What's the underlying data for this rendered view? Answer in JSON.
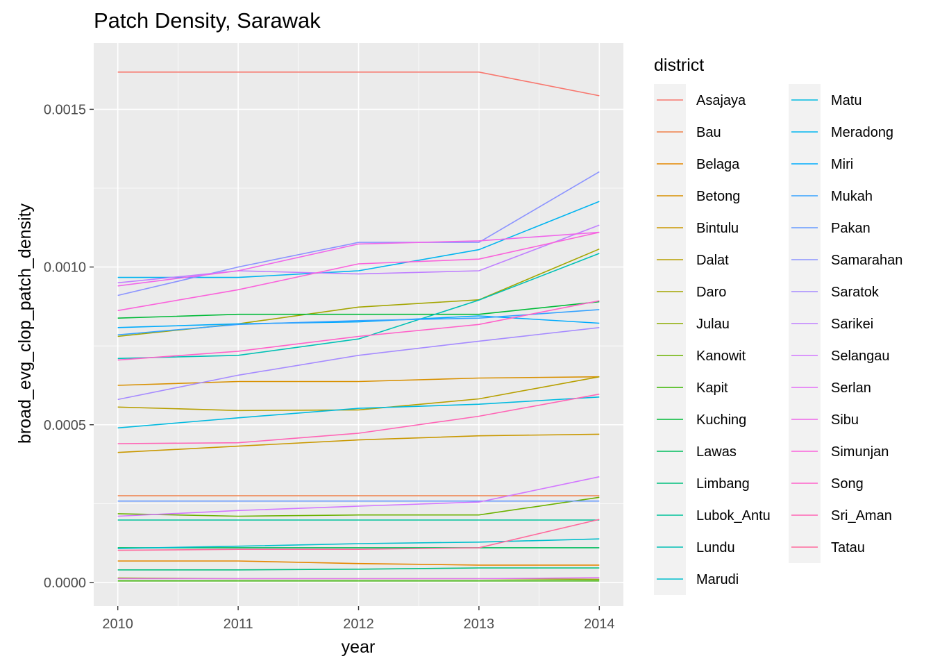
{
  "chart_data": {
    "type": "line",
    "title": "Patch Density, Sarawak",
    "xlabel": "year",
    "ylabel": "broad_evg_clop_patch_density",
    "x": [
      2010,
      2011,
      2012,
      2013,
      2014
    ],
    "x_ticks": [
      "2010",
      "2011",
      "2012",
      "2013",
      "2014"
    ],
    "y_ticks": [
      {
        "value": 0.0,
        "label": "0.0000"
      },
      {
        "value": 0.0005,
        "label": "0.0005"
      },
      {
        "value": 0.001,
        "label": "0.0010"
      },
      {
        "value": 0.0015,
        "label": "0.0015"
      }
    ],
    "xlim": [
      2009.8,
      2014.2
    ],
    "ylim": [
      -7.5e-05,
      0.00171
    ],
    "grid": true,
    "panel_background": "#ebebeb",
    "legend": {
      "title": "district",
      "placement": "right",
      "columns": 2
    },
    "series": [
      {
        "name": "Asajaya",
        "color": "#F8766D",
        "values": [
          0.001618,
          0.001618,
          0.001618,
          0.001618,
          0.001543
        ]
      },
      {
        "name": "Bau",
        "color": "#EF7F49",
        "values": [
          0.000275,
          0.000275,
          0.000275,
          0.000275,
          0.000275
        ]
      },
      {
        "name": "Belaga",
        "color": "#E58700",
        "values": [
          6.8e-05,
          6.8e-05,
          6e-05,
          5.5e-05,
          5.5e-05
        ]
      },
      {
        "name": "Betong",
        "color": "#D89000",
        "values": [
          0.000625,
          0.000637,
          0.000637,
          0.000648,
          0.000652
        ]
      },
      {
        "name": "Bintulu",
        "color": "#C99800",
        "values": [
          0.000412,
          0.000432,
          0.000452,
          0.000465,
          0.00047
        ]
      },
      {
        "name": "Dalat",
        "color": "#B79F00",
        "values": [
          0.000556,
          0.000545,
          0.000547,
          0.000582,
          0.000652
        ]
      },
      {
        "name": "Daro",
        "color": "#A3A500",
        "values": [
          0.00078,
          0.00082,
          0.000873,
          0.000896,
          0.001057
        ]
      },
      {
        "name": "Julau",
        "color": "#8BAB00",
        "values": [
          1.4e-05,
          1.2e-05,
          1.2e-05,
          1.2e-05,
          1e-05
        ]
      },
      {
        "name": "Kanowit",
        "color": "#6BB100",
        "values": [
          0.000218,
          0.00021,
          0.000214,
          0.000214,
          0.00027
        ]
      },
      {
        "name": "Kapit",
        "color": "#39B600",
        "values": [
          5e-06,
          5e-06,
          5e-06,
          5e-06,
          5e-06
        ]
      },
      {
        "name": "Kuching",
        "color": "#00BA38",
        "values": [
          0.000838,
          0.00085,
          0.00085,
          0.00085,
          0.00089
        ]
      },
      {
        "name": "Lawas",
        "color": "#00BD5C",
        "values": [
          0.00011,
          0.00011,
          0.00011,
          0.00011,
          0.00011
        ]
      },
      {
        "name": "Limbang",
        "color": "#00BF7D",
        "values": [
          4e-05,
          4e-05,
          4.2e-05,
          4.6e-05,
          4.6e-05
        ]
      },
      {
        "name": "Lubok_Antu",
        "color": "#00C19A",
        "values": [
          0.000198,
          0.000198,
          0.000198,
          0.000198,
          0.000198
        ]
      },
      {
        "name": "Lundu",
        "color": "#00C0B5",
        "values": [
          0.00071,
          0.00072,
          0.000772,
          0.000895,
          0.001043
        ]
      },
      {
        "name": "Marudi",
        "color": "#00BECC",
        "values": [
          0.000108,
          0.000115,
          0.000123,
          0.000128,
          0.000138
        ]
      },
      {
        "name": "Matu",
        "color": "#00BAE0",
        "values": [
          0.00049,
          0.000522,
          0.000552,
          0.000565,
          0.000588
        ]
      },
      {
        "name": "Meradong",
        "color": "#00B4F0",
        "values": [
          0.000967,
          0.000967,
          0.000988,
          0.001055,
          0.001208
        ]
      },
      {
        "name": "Miri",
        "color": "#00ABFD",
        "values": [
          0.000808,
          0.00082,
          0.000826,
          0.000845,
          0.000822
        ]
      },
      {
        "name": "Mukah",
        "color": "#35A2FF",
        "values": [
          0.000785,
          0.000818,
          0.00083,
          0.000838,
          0.000865
        ]
      },
      {
        "name": "Pakan",
        "color": "#6699FF",
        "values": [
          0.000258,
          0.000258,
          0.000258,
          0.000258,
          0.000258
        ]
      },
      {
        "name": "Samarahan",
        "color": "#8B93FF",
        "values": [
          0.00091,
          0.001,
          0.001078,
          0.001078,
          0.001302
        ]
      },
      {
        "name": "Saratok",
        "color": "#A58AFF",
        "values": [
          0.00058,
          0.000657,
          0.00072,
          0.000765,
          0.000808
        ]
      },
      {
        "name": "Sarikei",
        "color": "#BF80FF",
        "values": [
          0.00095,
          0.000988,
          0.000978,
          0.000988,
          0.001133
        ]
      },
      {
        "name": "Selangau",
        "color": "#D277FF",
        "values": [
          0.00021,
          0.000228,
          0.000242,
          0.000255,
          0.000335
        ]
      },
      {
        "name": "Serlan",
        "color": "#E36EF6",
        "values": [
          1.2e-05,
          1.2e-05,
          1.2e-05,
          1.2e-05,
          1.5e-05
        ]
      },
      {
        "name": "Sibu",
        "color": "#F066EA",
        "values": [
          0.00094,
          0.000988,
          0.001073,
          0.001083,
          0.00111
        ]
      },
      {
        "name": "Simunjan",
        "color": "#FA62DB",
        "values": [
          0.000862,
          0.000928,
          0.00101,
          0.001025,
          0.00111
        ]
      },
      {
        "name": "Song",
        "color": "#FF61C9",
        "values": [
          0.000705,
          0.000733,
          0.00078,
          0.000818,
          0.000893
        ]
      },
      {
        "name": "Sri_Aman",
        "color": "#FF64B5",
        "values": [
          0.00044,
          0.000443,
          0.000473,
          0.000527,
          0.000597
        ]
      },
      {
        "name": "Tatau",
        "color": "#FF699C",
        "values": [
          0.000102,
          0.000105,
          0.000105,
          0.00011,
          0.0002
        ]
      }
    ]
  }
}
